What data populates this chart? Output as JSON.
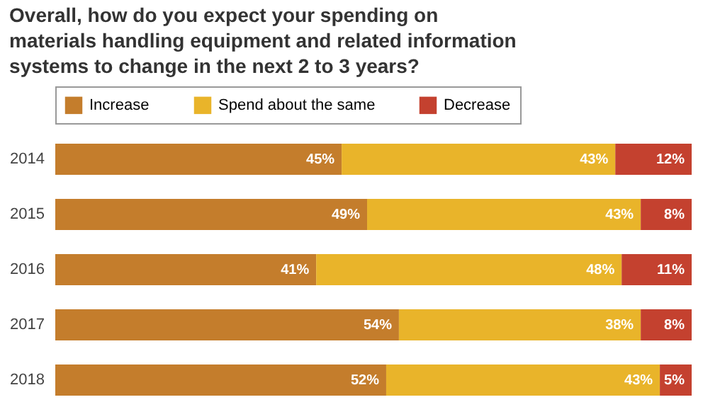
{
  "chart_data": {
    "type": "bar",
    "orientation": "horizontal",
    "stacked": true,
    "legend": "top",
    "title": "Overall, how do you expect your spending on materials handling equipment and related information systems to change in the next 2 to 3 years?",
    "categories": [
      "2014",
      "2015",
      "2016",
      "2017",
      "2018"
    ],
    "series": [
      {
        "name": "Increase",
        "color": "#c47d2c",
        "values": [
          45,
          49,
          41,
          54,
          52
        ],
        "value_labels": [
          "45%",
          "49%",
          "41%",
          "54%",
          "52%"
        ]
      },
      {
        "name": "Spend about the same",
        "color": "#e9b42a",
        "values": [
          43,
          43,
          48,
          38,
          43
        ],
        "value_labels": [
          "43%",
          "43%",
          "48%",
          "38%",
          "43%"
        ]
      },
      {
        "name": "Decrease",
        "color": "#c4412f",
        "values": [
          12,
          8,
          11,
          8,
          5
        ],
        "value_labels": [
          "12%",
          "8%",
          "11%",
          "8%",
          "5%"
        ]
      }
    ]
  }
}
